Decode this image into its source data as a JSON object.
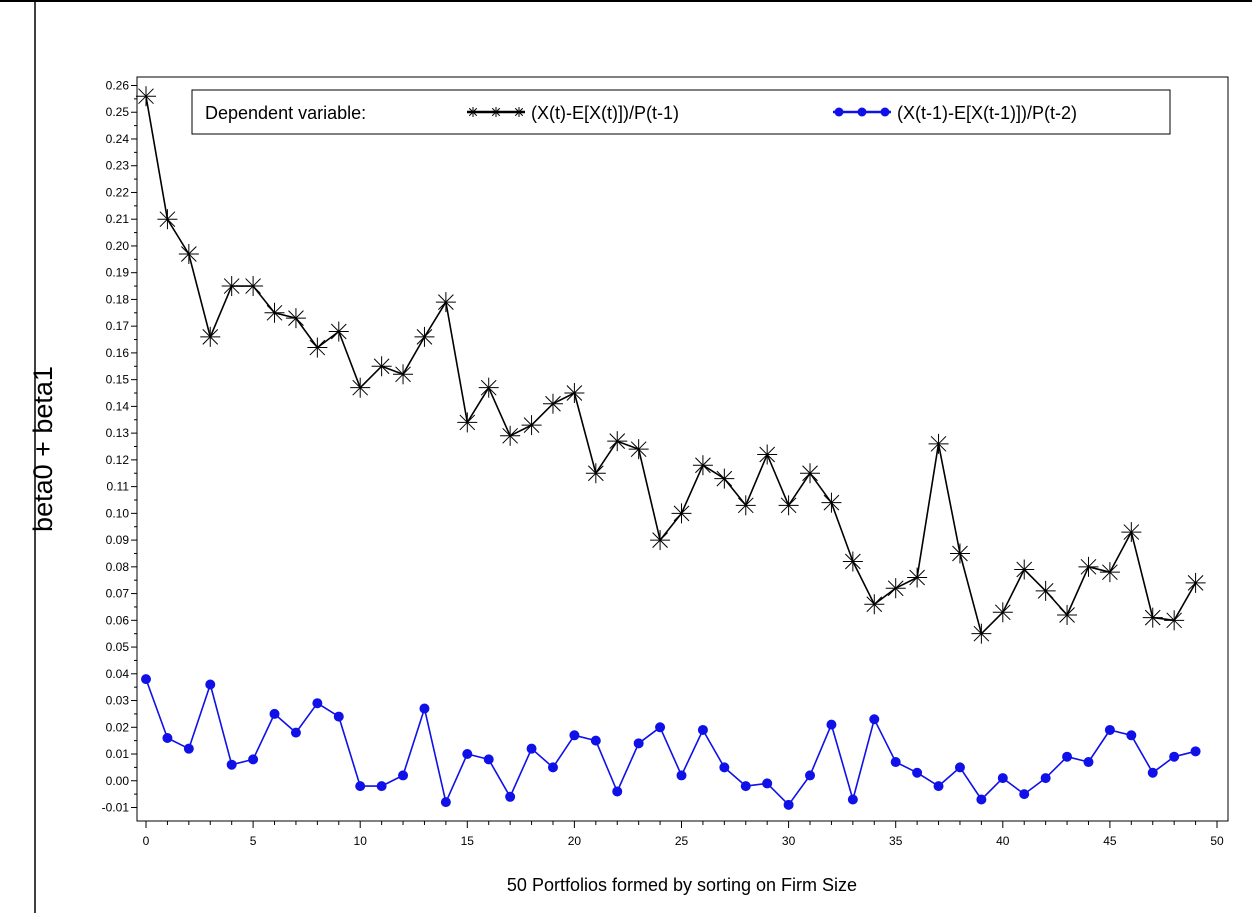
{
  "chart_data": {
    "type": "line",
    "title": "",
    "xlabel": "50 Portfolios formed by sorting on Firm Size",
    "ylabel": "beta0 + beta1",
    "xlim": [
      0,
      50
    ],
    "ylim": [
      -0.015,
      0.265
    ],
    "x_ticks": [
      0,
      5,
      10,
      15,
      20,
      25,
      30,
      35,
      40,
      45,
      50
    ],
    "y_ticks": [
      -0.01,
      0.0,
      0.01,
      0.02,
      0.03,
      0.04,
      0.05,
      0.06,
      0.07,
      0.08,
      0.09,
      0.1,
      0.11,
      0.12,
      0.13,
      0.14,
      0.15,
      0.16,
      0.17,
      0.18,
      0.19,
      0.2,
      0.21,
      0.22,
      0.23,
      0.24,
      0.25,
      0.26
    ],
    "grid": false,
    "legend": {
      "title": "Dependent variable:",
      "position": "top"
    },
    "x": [
      0,
      1,
      2,
      3,
      4,
      5,
      6,
      7,
      8,
      9,
      10,
      11,
      12,
      13,
      14,
      15,
      16,
      17,
      18,
      19,
      20,
      21,
      22,
      23,
      24,
      25,
      26,
      27,
      28,
      29,
      30,
      31,
      32,
      33,
      34,
      35,
      36,
      37,
      38,
      39,
      40,
      41,
      42,
      43,
      44,
      45,
      46,
      47,
      48,
      49
    ],
    "series": [
      {
        "name": "(X(t)-E[X(t)])/P(t-1)",
        "color": "#000000",
        "marker": "asterisk",
        "values": [
          0.256,
          0.21,
          0.197,
          0.166,
          0.185,
          0.185,
          0.175,
          0.173,
          0.162,
          0.168,
          0.147,
          0.155,
          0.152,
          0.166,
          0.179,
          0.134,
          0.147,
          0.129,
          0.133,
          0.141,
          0.145,
          0.115,
          0.127,
          0.124,
          0.09,
          0.1,
          0.118,
          0.113,
          0.103,
          0.122,
          0.103,
          0.115,
          0.104,
          0.082,
          0.066,
          0.072,
          0.076,
          0.126,
          0.085,
          0.055,
          0.063,
          0.079,
          0.071,
          0.062,
          0.08,
          0.078,
          0.093,
          0.061,
          0.06,
          0.074
        ]
      },
      {
        "name": "(X(t-1)-E[X(t-1)])/P(t-2)",
        "color": "#1010e8",
        "marker": "circle",
        "values": [
          0.038,
          0.016,
          0.012,
          0.036,
          0.006,
          0.008,
          0.025,
          0.018,
          0.029,
          0.024,
          -0.002,
          -0.002,
          0.002,
          0.027,
          -0.008,
          0.01,
          0.008,
          -0.006,
          0.012,
          0.005,
          0.017,
          0.015,
          -0.004,
          0.014,
          0.02,
          0.002,
          0.019,
          0.005,
          -0.002,
          -0.001,
          -0.009,
          0.002,
          0.021,
          -0.007,
          0.023,
          0.007,
          0.003,
          -0.002,
          0.005,
          -0.007,
          0.001,
          -0.005,
          0.001,
          0.009,
          0.007,
          0.019,
          0.017,
          0.003,
          0.009,
          0.011
        ]
      }
    ]
  }
}
